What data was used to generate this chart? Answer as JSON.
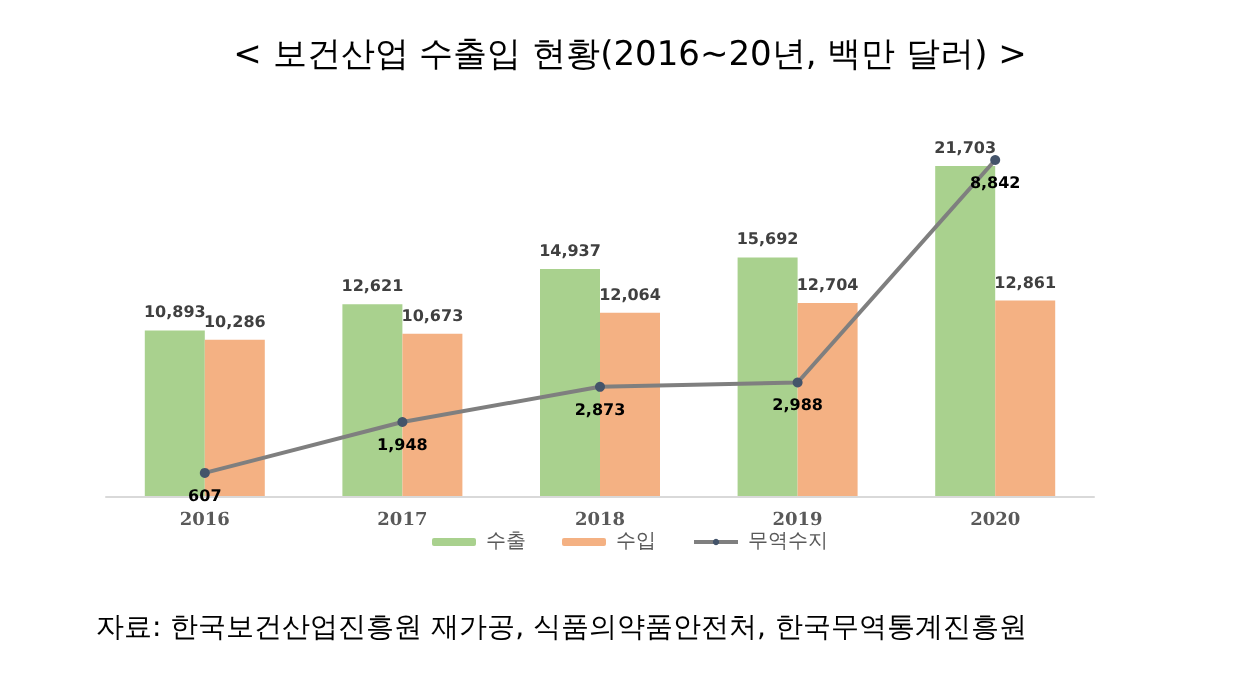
{
  "chart_data": {
    "type": "bar",
    "title": "< 보건산업 수출입 현황(2016~20년, 백만 달러) >",
    "categories": [
      "2016",
      "2017",
      "2018",
      "2019",
      "2020"
    ],
    "series": [
      {
        "name": "수출",
        "color": "#a9d18e",
        "values": [
          10893,
          12621,
          14937,
          15692,
          21703
        ],
        "value_labels": [
          "10,893",
          "12,621",
          "14,937",
          "15,692",
          "21,703"
        ]
      },
      {
        "name": "수입",
        "color": "#f4b183",
        "values": [
          10286,
          10673,
          12064,
          12704,
          12861
        ],
        "value_labels": [
          "10,286",
          "10,673",
          "12,064",
          "12,704",
          "12,861"
        ]
      },
      {
        "name": "무역수지",
        "type": "line",
        "axis": "y2",
        "color": "#7f7f7f",
        "values": [
          607,
          1948,
          2873,
          2988,
          8842
        ],
        "value_labels": [
          "607",
          "1,948",
          "2,873",
          "2,988",
          "8,842"
        ]
      }
    ],
    "tick_labels": "x",
    "legend": "bottom",
    "marker": "circle",
    "annotations": [
      "자료: 한국보건산업진흥원 재가공, 식품의약품안전처, 한국무역통계진흥원"
    ]
  }
}
